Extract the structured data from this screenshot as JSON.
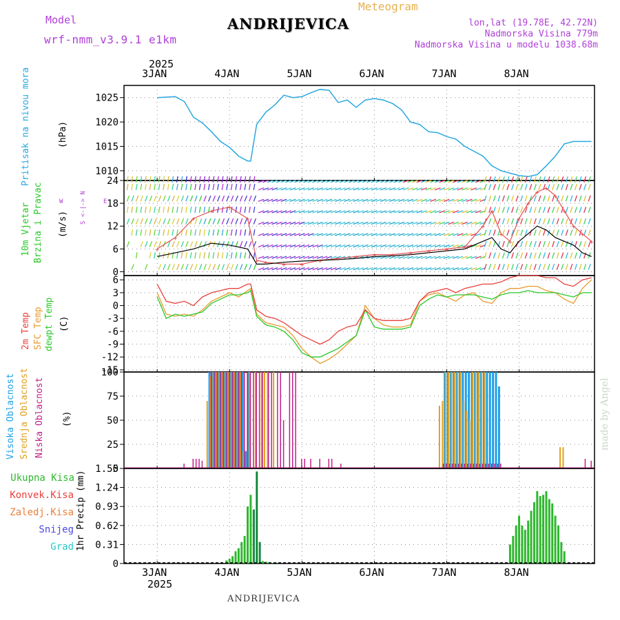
{
  "header": {
    "model_label": "Model",
    "model_name": "wrf-nmm_v3.9.1 e1km",
    "title": "ANDRIJEVICA",
    "meteogram": "Meteogram",
    "lonlat": "lon,lat (19.78E, 42.72N)",
    "altitude": "Nadmorska Visina 779m",
    "model_altitude": "Nadmorska Visina u modelu 1038.68m",
    "year": "2025",
    "footer": "ANDRIJEVICA",
    "watermark": "made by Angel"
  },
  "colors": {
    "pressure": "#29a8e0",
    "temp2m": "#e8403c",
    "sfctemp": "#e89a2c",
    "dewpt": "#28c828",
    "cloud_high": "#1e9fe6",
    "cloud_mid": "#e0a020",
    "cloud_low": "#c0208a",
    "precip_total": "#2eb82e",
    "precip_dark": "#0e7a4a",
    "purple": "#b040d8"
  },
  "chart_data": [
    {
      "type": "line",
      "title": "Pritisak na nivou mora",
      "ylabel": "(hPa)",
      "x_ticks": [
        "3JAN",
        "4JAN",
        "5JAN",
        "6JAN",
        "7JAN",
        "8JAN"
      ],
      "x_range_hours": [
        0,
        144
      ],
      "ylim": [
        1008,
        1027.5
      ],
      "y_ticks": [
        "1010",
        "1015",
        "1020",
        "1025"
      ],
      "grid": true,
      "series": [
        {
          "name": "Pritisak na nivou mora",
          "x": [
            0,
            3,
            6,
            9,
            12,
            15,
            18,
            21,
            24,
            27,
            30,
            31,
            33,
            36,
            39,
            42,
            45,
            48,
            51,
            54,
            57,
            60,
            63,
            66,
            69,
            72,
            75,
            78,
            81,
            84,
            87,
            90,
            93,
            96,
            99,
            102,
            105,
            108,
            111,
            114,
            117,
            120,
            123,
            126,
            129,
            132,
            135,
            138,
            141,
            144
          ],
          "values": [
            1025,
            1025.1,
            1025.2,
            1024.2,
            1021,
            1019.8,
            1018,
            1016,
            1014.8,
            1013,
            1012,
            1012,
            1019.5,
            1022,
            1023.5,
            1025.5,
            1025,
            1025.2,
            1026,
            1026.7,
            1026.5,
            1024,
            1024.5,
            1023,
            1024.5,
            1024.8,
            1024.5,
            1023.8,
            1022.5,
            1020,
            1019.5,
            1018,
            1017.8,
            1017,
            1016.5,
            1015,
            1014,
            1013,
            1011,
            1010,
            1009.5,
            1009.0,
            1008.8,
            1009.2,
            1011,
            1013,
            1015.5,
            1016,
            1016,
            1016
          ]
        }
      ]
    },
    {
      "type": "line",
      "title": "10m Vjetar Brzina i Pravac",
      "ylabel": "(m/s)",
      "direction_legend": "N / E / S / W",
      "direction_glyphs": [
        "N",
        "E",
        "S",
        "W",
        "<",
        "-",
        "|",
        "-",
        ">"
      ],
      "ylim": [
        -1,
        24
      ],
      "y_ticks": [
        "0",
        "6",
        "12",
        "18",
        "24"
      ],
      "grid": true,
      "series": [
        {
          "name": "speed",
          "x": [
            0,
            6,
            12,
            18,
            24,
            30,
            33,
            36,
            42,
            48,
            54,
            60,
            66,
            72,
            78,
            84,
            90,
            96,
            102,
            108,
            111,
            114,
            117,
            120,
            123,
            126,
            129,
            132,
            135,
            138,
            141,
            144
          ],
          "values": [
            4,
            5,
            6,
            7.5,
            7,
            6,
            2,
            2,
            2.5,
            2.8,
            3,
            3.2,
            3.5,
            4,
            4.2,
            4.5,
            5,
            5.5,
            6,
            8,
            9,
            6,
            5,
            8,
            10,
            12,
            11,
            9,
            8,
            7,
            5,
            4
          ]
        },
        {
          "name": "gust",
          "x": [
            0,
            6,
            12,
            18,
            24,
            30,
            33,
            36,
            42,
            48,
            54,
            60,
            66,
            72,
            78,
            84,
            90,
            96,
            102,
            108,
            111,
            114,
            117,
            120,
            123,
            126,
            129,
            132,
            135,
            138,
            141,
            144
          ],
          "values": [
            6,
            9,
            14,
            16,
            17,
            14,
            3,
            2.5,
            2,
            2,
            3,
            3.5,
            4,
            4.5,
            4.5,
            5,
            5.5,
            6,
            6.5,
            12,
            16,
            10,
            8,
            14,
            18,
            21,
            22,
            20,
            16,
            12,
            10,
            8
          ]
        }
      ]
    },
    {
      "type": "line",
      "ylabel": "(C)",
      "legend": [
        "2m Temp",
        "SFC Temp",
        "dewpt Temp"
      ],
      "ylim": [
        -15.5,
        7
      ],
      "y_ticks": [
        "6",
        "3",
        "0",
        "-3",
        "-6",
        "-9",
        "-12",
        "-15"
      ],
      "grid": true,
      "series": [
        {
          "name": "2m Temp",
          "x": [
            0,
            3,
            6,
            9,
            12,
            15,
            18,
            21,
            24,
            27,
            30,
            31,
            33,
            36,
            39,
            42,
            45,
            48,
            51,
            54,
            57,
            60,
            63,
            66,
            69,
            72,
            75,
            78,
            81,
            84,
            87,
            90,
            93,
            96,
            99,
            102,
            105,
            108,
            111,
            114,
            117,
            120,
            123,
            126,
            129,
            132,
            135,
            138,
            141,
            144
          ],
          "values": [
            5,
            1,
            0.5,
            1,
            0,
            2,
            3,
            3.5,
            4,
            4,
            5,
            5,
            -1,
            -2.5,
            -3,
            -4,
            -5.5,
            -7,
            -8,
            -9,
            -8,
            -6,
            -5,
            -4.5,
            -1,
            -3,
            -3.5,
            -3.5,
            -3.5,
            -3,
            1,
            3,
            3.5,
            4,
            3,
            4,
            4.5,
            5,
            5,
            5.5,
            6.5,
            7,
            7,
            7,
            6.5,
            6.5,
            5,
            4.5,
            6,
            6.5
          ]
        },
        {
          "name": "SFC Temp",
          "x": [
            0,
            3,
            6,
            9,
            12,
            15,
            18,
            21,
            24,
            27,
            30,
            31,
            33,
            36,
            39,
            42,
            45,
            48,
            51,
            54,
            57,
            60,
            63,
            66,
            69,
            72,
            75,
            78,
            81,
            84,
            87,
            90,
            93,
            96,
            99,
            102,
            105,
            108,
            111,
            114,
            117,
            120,
            123,
            126,
            129,
            132,
            135,
            138,
            141,
            144
          ],
          "values": [
            3,
            -2,
            -2.5,
            -2,
            -2.5,
            -1,
            1,
            2,
            3,
            2,
            3.5,
            4,
            -2,
            -4,
            -4.5,
            -5,
            -7,
            -10,
            -12,
            -13.5,
            -12.5,
            -11,
            -9,
            -7,
            0,
            -3,
            -4.5,
            -5,
            -5,
            -4.5,
            1,
            2.5,
            3,
            2,
            1,
            2.5,
            3,
            1,
            0.5,
            3,
            4,
            4,
            4.5,
            4.5,
            3.5,
            3,
            1.5,
            0.5,
            4,
            6
          ]
        },
        {
          "name": "dewpt Temp",
          "x": [
            0,
            3,
            6,
            9,
            12,
            15,
            18,
            21,
            24,
            27,
            30,
            31,
            33,
            36,
            39,
            42,
            45,
            48,
            51,
            54,
            57,
            60,
            63,
            66,
            69,
            72,
            75,
            78,
            81,
            84,
            87,
            90,
            93,
            96,
            99,
            102,
            105,
            108,
            111,
            114,
            117,
            120,
            123,
            126,
            129,
            132,
            135,
            138,
            141,
            144
          ],
          "values": [
            2,
            -3,
            -2,
            -2.5,
            -2,
            -1.5,
            0.5,
            1.5,
            2.5,
            2.5,
            3,
            3.5,
            -2.5,
            -4.5,
            -5,
            -6,
            -8,
            -11,
            -12,
            -12,
            -11,
            -10,
            -8.5,
            -7,
            -1,
            -5,
            -5.5,
            -5.5,
            -5.5,
            -5,
            0,
            1.5,
            2.5,
            2,
            2.5,
            2.5,
            2.5,
            2,
            1.5,
            2.5,
            3,
            3,
            3.5,
            3,
            3,
            3,
            2.5,
            2,
            3,
            3
          ]
        }
      ]
    },
    {
      "type": "bar",
      "ylabel": "(%)",
      "legend": [
        "Visoka Oblacnost",
        "Srednja Oblacnost",
        "Niska Oblacnost"
      ],
      "ylim": [
        0,
        100
      ],
      "y_ticks": [
        "0",
        "25",
        "50",
        "75",
        "100"
      ],
      "grid": true,
      "series": [
        {
          "name": "Visoka Oblacnost",
          "x": [
            17,
            18,
            19,
            20,
            21,
            22,
            23,
            24,
            25,
            26,
            27,
            28,
            29,
            30,
            95,
            96,
            97,
            98,
            99,
            100,
            101,
            102,
            103,
            104,
            105,
            106,
            107,
            108,
            109,
            110,
            111,
            112,
            113
          ],
          "values": [
            100,
            100,
            100,
            100,
            100,
            100,
            100,
            100,
            100,
            100,
            100,
            100,
            18,
            100,
            100,
            100,
            100,
            100,
            100,
            100,
            100,
            100,
            100,
            100,
            100,
            100,
            100,
            100,
            100,
            100,
            100,
            100,
            85
          ]
        },
        {
          "name": "Srednja Oblacnost",
          "x": [
            16,
            17,
            18,
            19,
            20,
            21,
            22,
            23,
            24,
            25,
            26,
            27,
            28,
            30,
            32,
            34,
            35,
            36,
            38,
            93,
            94,
            95,
            96,
            97,
            98,
            99,
            100,
            101,
            102,
            103,
            104,
            105,
            106,
            107,
            108,
            133,
            134
          ],
          "values": [
            70,
            95,
            100,
            100,
            100,
            100,
            100,
            100,
            100,
            100,
            100,
            100,
            18,
            100,
            100,
            100,
            100,
            100,
            100,
            65,
            70,
            100,
            100,
            100,
            100,
            100,
            100,
            70,
            60,
            50,
            100,
            100,
            100,
            100,
            100,
            22,
            22
          ]
        },
        {
          "name": "Niska Oblacnost",
          "x": [
            8,
            11,
            12,
            13,
            14,
            17,
            18,
            19,
            20,
            21,
            22,
            23,
            24,
            25,
            26,
            27,
            28,
            29,
            30,
            31,
            32,
            33,
            34,
            36,
            37,
            39,
            40,
            41,
            43,
            44,
            45,
            47,
            48,
            50,
            53,
            56,
            57,
            60,
            94,
            95,
            96,
            97,
            98,
            99,
            100,
            101,
            102,
            103,
            104,
            105,
            106,
            107,
            108,
            109,
            110,
            111,
            112,
            113,
            141,
            143
          ],
          "values": [
            5,
            10,
            10,
            10,
            8,
            100,
            100,
            100,
            100,
            100,
            100,
            100,
            100,
            100,
            100,
            100,
            100,
            100,
            100,
            100,
            100,
            100,
            100,
            100,
            100,
            100,
            100,
            50,
            100,
            100,
            100,
            10,
            10,
            10,
            10,
            10,
            10,
            5,
            5,
            5,
            5,
            5,
            5,
            5,
            5,
            5,
            5,
            5,
            5,
            5,
            5,
            5,
            5,
            5,
            5,
            5,
            5,
            5,
            10,
            8
          ]
        }
      ]
    },
    {
      "type": "bar",
      "ylabel": "1hr Precip (mm)",
      "legend": [
        "Ukupna Kisa",
        "Konvek.Kisa",
        "Zaledj.Kisa",
        "Snijeg",
        "Grad"
      ],
      "ylim": [
        0,
        1.55
      ],
      "y_ticks": [
        "0",
        "0.31",
        "0.62",
        "0.93",
        "1.24",
        "1.55"
      ],
      "grid": true,
      "series": [
        {
          "name": "Ukupna Kisa",
          "x": [
            23,
            24,
            25,
            26,
            27,
            28,
            29,
            30,
            31,
            32,
            33,
            34,
            35,
            36,
            37,
            38,
            117,
            118,
            119,
            120,
            121,
            122,
            123,
            124,
            125,
            126,
            127,
            128,
            129,
            130,
            131,
            132,
            133,
            134,
            135
          ],
          "values": [
            0.05,
            0.08,
            0.12,
            0.2,
            0.25,
            0.35,
            0.45,
            0.93,
            1.12,
            0.88,
            1.5,
            0.35,
            0.04,
            0.03,
            0.02,
            0.01,
            0.31,
            0.45,
            0.62,
            0.78,
            0.62,
            0.55,
            0.7,
            0.86,
            1.0,
            1.18,
            1.1,
            1.12,
            1.18,
            1.05,
            0.98,
            0.78,
            0.62,
            0.35,
            0.2
          ]
        },
        {
          "name": "Snijeg",
          "x": [
            32,
            33,
            34
          ],
          "values": [
            0.88,
            1.5,
            0.35
          ]
        }
      ]
    }
  ]
}
